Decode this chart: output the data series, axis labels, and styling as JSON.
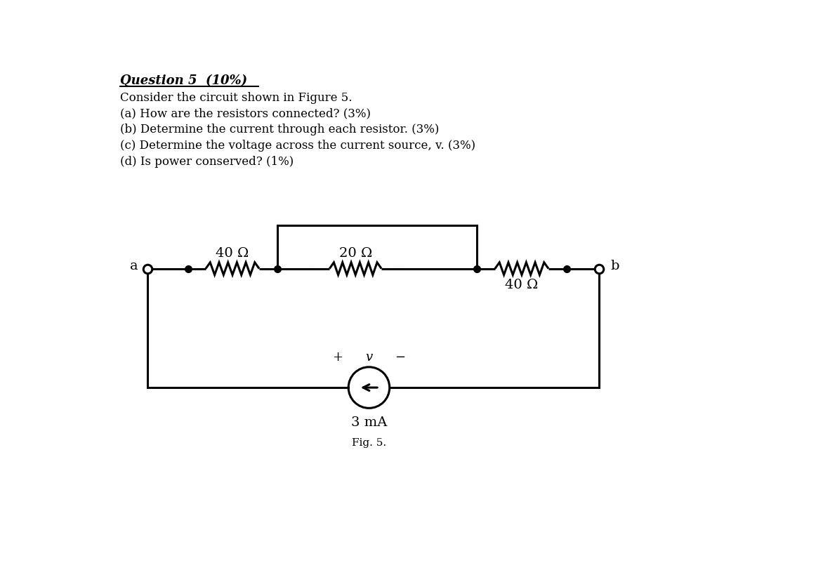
{
  "title_line1": "Question 5  (10%)",
  "text_lines": [
    "Consider the circuit shown in Figure 5.",
    "(a) How are the resistors connected? (3%)",
    "(b) Determine the current through each resistor. (3%)",
    "(c) Determine the voltage across the current source, v. (3%)",
    "(d) Is power conserved? (1%)"
  ],
  "fig_label": "Fig. 5.",
  "current_source_label": "3 mA",
  "node_a_label": "a",
  "node_b_label": "b",
  "voltage_label": "v",
  "plus_label": "+",
  "minus_label": "−",
  "line_color": "#000000",
  "background_color": "#ffffff",
  "line_width": 2.2,
  "text_color": "#000000",
  "omega_color": "#000000",
  "r1_label": "40 Ω",
  "r2_label": "20 Ω",
  "r3_label": "40 Ω",
  "title_fontsize": 13,
  "body_fontsize": 12,
  "circuit_fontsize": 14
}
